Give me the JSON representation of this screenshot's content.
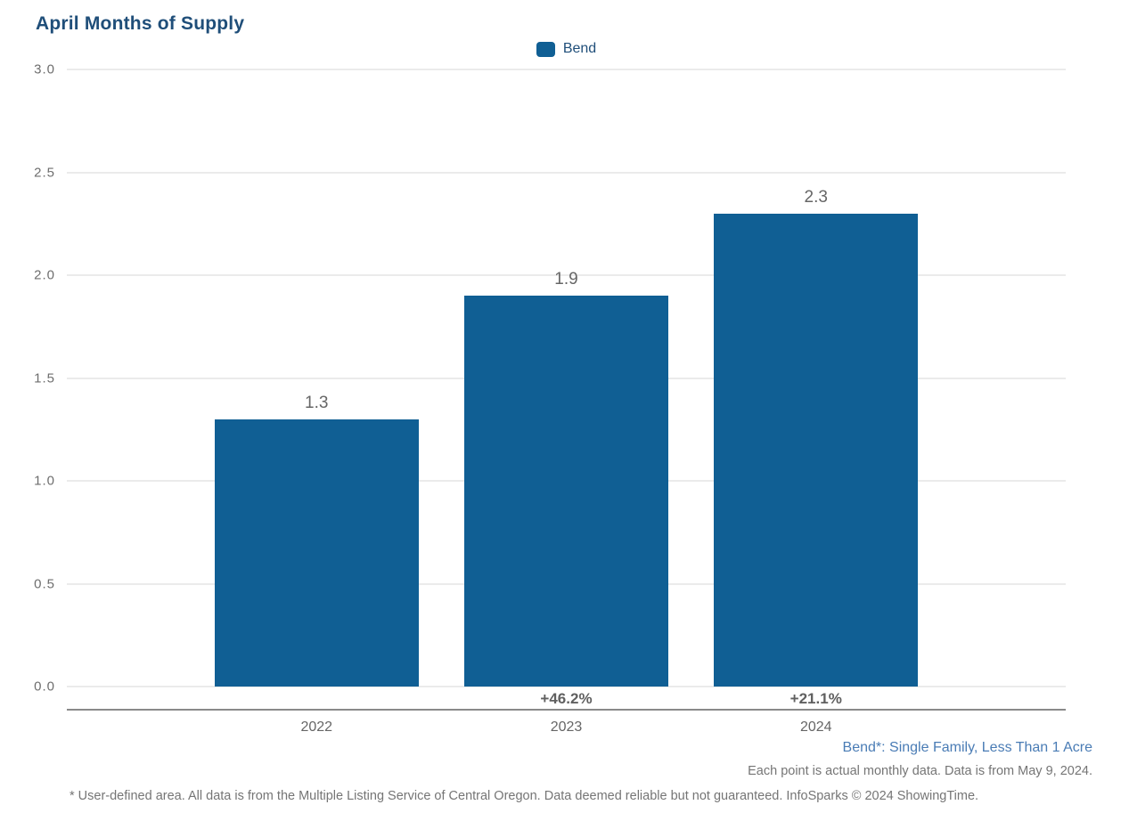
{
  "page": {
    "title": "April Months of Supply"
  },
  "legend": {
    "items": [
      {
        "label": "Bend",
        "color": "#105F94"
      }
    ]
  },
  "chart_data": {
    "type": "bar",
    "title": "April Months of Supply",
    "categories": [
      "2022",
      "2023",
      "2024"
    ],
    "series": [
      {
        "name": "Bend",
        "values": [
          1.3,
          1.9,
          2.3
        ],
        "color": "#105F94"
      }
    ],
    "value_labels": [
      "1.3",
      "1.9",
      "2.3"
    ],
    "change_labels": [
      "",
      "+46.2%",
      "+21.1%"
    ],
    "ylim": [
      0,
      3
    ],
    "yticks": [
      "3.0",
      "2.5",
      "2.0",
      "1.5",
      "1.0",
      "0.5",
      "0.0"
    ],
    "grid": true,
    "legend_position": "top-center",
    "xlabel": "",
    "ylabel": ""
  },
  "footnotes": {
    "series_definition": "Bend*: Single Family, Less Than 1 Acre",
    "data_note": "Each point is actual monthly data. Data is from May 9, 2024.",
    "disclaimer": "* User-defined area. All data is from the Multiple Listing Service of Central Oregon. Data deemed reliable but not guaranteed. InfoSparks © 2024 ShowingTime."
  },
  "colors": {
    "bar": "#105F94",
    "title_text": "#1F4E79",
    "legend_text": "#1F4E79",
    "series_note_text": "#4A7CB5",
    "axis_text": "#666666",
    "footnote_text": "#757575",
    "gridline": "#ebebeb",
    "axis_line": "#8a8a8a"
  }
}
